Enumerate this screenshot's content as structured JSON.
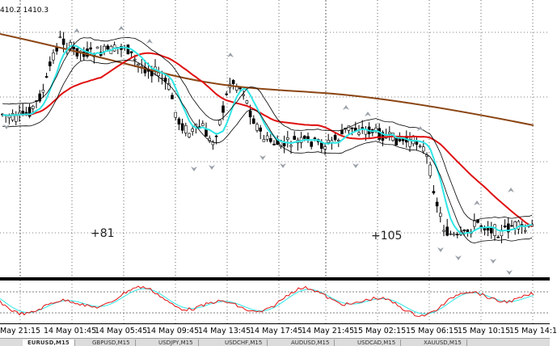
{
  "ohlc_readout": "410.2 1410.3",
  "profit_labels": [
    "+81",
    "+105"
  ],
  "time_labels": [
    "May 21:15",
    "14 May 01:45",
    "14 May 05:45",
    "14 May 09:45",
    "14 May 13:45",
    "14 May 17:45",
    "14 May 21:45",
    "15 May 02:15",
    "15 May 06:15",
    "15 May 10:15",
    "15 May 14:1"
  ],
  "tabs": [
    "EURUSD,M15",
    "GBPUSD,M15",
    "USDJPY,M15",
    "USDCHF,M15",
    "AUDUSD,M15",
    "USDCAD,M15",
    "XAUUSD,M15"
  ],
  "colors": {
    "ma_fast": "#2ee6e6",
    "ma_mid": "#e01010",
    "ma_slow": "#8b4513",
    "envelope": "#000000",
    "fractal": "#9aa0a8",
    "osc_main": "#e01010",
    "osc_signal": "#2ee6e6",
    "grid": "#000000"
  },
  "chart_data": {
    "type": "candlestick",
    "indicators": [
      "moving-average-fast",
      "moving-average-mid",
      "moving-average-slow",
      "fractals",
      "stochastic-oscillator"
    ],
    "grid": true
  }
}
